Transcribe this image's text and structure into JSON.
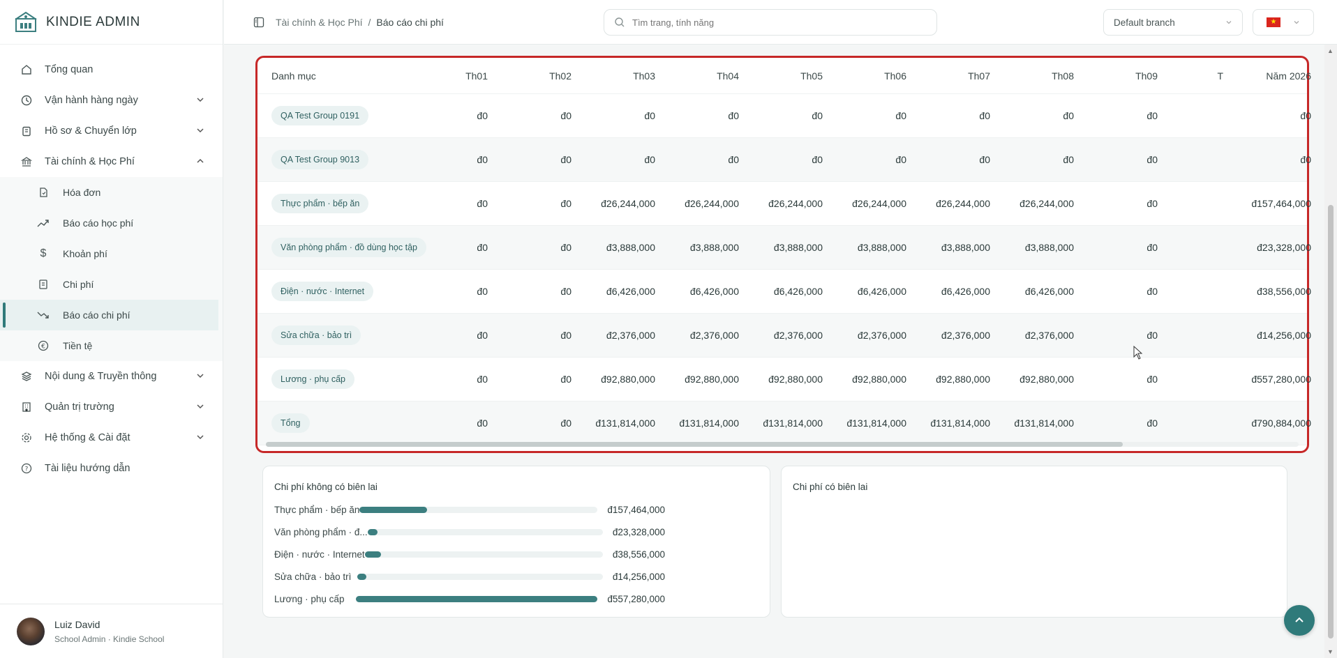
{
  "app": {
    "name": "KINDIE ADMIN"
  },
  "sidebar": {
    "items": [
      {
        "label": "Tổng quan",
        "icon": "home-icon"
      },
      {
        "label": "Vận hành hàng ngày",
        "icon": "clock-icon"
      },
      {
        "label": "Hồ sơ & Chuyển lớp",
        "icon": "clipboard-icon"
      },
      {
        "label": "Tài chính & Học Phí",
        "icon": "bank-icon"
      }
    ],
    "finance_sub": [
      {
        "label": "Hóa đơn",
        "icon": "invoice-icon"
      },
      {
        "label": "Báo cáo học phí",
        "icon": "trend-up-icon"
      },
      {
        "label": "Khoản phí",
        "icon": "dollar-icon"
      },
      {
        "label": "Chi phí",
        "icon": "receipt-icon"
      },
      {
        "label": "Báo cáo chi phí",
        "icon": "trend-down-icon"
      },
      {
        "label": "Tiền tệ",
        "icon": "euro-icon"
      }
    ],
    "items_after": [
      {
        "label": "Nội dung & Truyền thông",
        "icon": "layers-icon"
      },
      {
        "label": "Quản trị trường",
        "icon": "building-icon"
      },
      {
        "label": "Hệ thống & Cài đặt",
        "icon": "gear-icon"
      },
      {
        "label": "Tài liệu hướng dẫn",
        "icon": "help-icon"
      }
    ]
  },
  "user": {
    "name": "Luiz David",
    "role": "School Admin · Kindie School"
  },
  "header": {
    "breadcrumb": [
      "Tài chính & Học Phí",
      "/",
      "Báo cáo chi phí"
    ],
    "search_placeholder": "Tìm trang, tính năng",
    "branch": "Default branch",
    "language_flag": "vietnam-flag-icon"
  },
  "table": {
    "columns": [
      "Danh mục",
      "Th01",
      "Th02",
      "Th03",
      "Th04",
      "Th05",
      "Th06",
      "Th07",
      "Th08",
      "Th09",
      "T",
      "Năm 2026"
    ],
    "rows": [
      {
        "category": "QA Test Group 0191",
        "values": [
          "đ0",
          "đ0",
          "đ0",
          "đ0",
          "đ0",
          "đ0",
          "đ0",
          "đ0",
          "đ0"
        ],
        "year": "đ0"
      },
      {
        "category": "QA Test Group 9013",
        "values": [
          "đ0",
          "đ0",
          "đ0",
          "đ0",
          "đ0",
          "đ0",
          "đ0",
          "đ0",
          "đ0"
        ],
        "year": "đ0"
      },
      {
        "category": "Thực phẩm · bếp ăn",
        "values": [
          "đ0",
          "đ0",
          "đ26,244,000",
          "đ26,244,000",
          "đ26,244,000",
          "đ26,244,000",
          "đ26,244,000",
          "đ26,244,000",
          "đ0"
        ],
        "year": "đ157,464,000"
      },
      {
        "category": "Văn phòng phẩm · đồ dùng học tập",
        "values": [
          "đ0",
          "đ0",
          "đ3,888,000",
          "đ3,888,000",
          "đ3,888,000",
          "đ3,888,000",
          "đ3,888,000",
          "đ3,888,000",
          "đ0"
        ],
        "year": "đ23,328,000"
      },
      {
        "category": "Điện · nước · Internet",
        "values": [
          "đ0",
          "đ0",
          "đ6,426,000",
          "đ6,426,000",
          "đ6,426,000",
          "đ6,426,000",
          "đ6,426,000",
          "đ6,426,000",
          "đ0"
        ],
        "year": "đ38,556,000"
      },
      {
        "category": "Sửa chữa · bảo trì",
        "values": [
          "đ0",
          "đ0",
          "đ2,376,000",
          "đ2,376,000",
          "đ2,376,000",
          "đ2,376,000",
          "đ2,376,000",
          "đ2,376,000",
          "đ0"
        ],
        "year": "đ14,256,000"
      },
      {
        "category": "Lương · phụ cấp",
        "values": [
          "đ0",
          "đ0",
          "đ92,880,000",
          "đ92,880,000",
          "đ92,880,000",
          "đ92,880,000",
          "đ92,880,000",
          "đ92,880,000",
          "đ0"
        ],
        "year": "đ557,280,000"
      },
      {
        "category": "Tổng",
        "values": [
          "đ0",
          "đ0",
          "đ131,814,000",
          "đ131,814,000",
          "đ131,814,000",
          "đ131,814,000",
          "đ131,814,000",
          "đ131,814,000",
          "đ0"
        ],
        "year": "đ790,884,000"
      }
    ]
  },
  "no_receipt": {
    "title": "Chi phí không có biên lai",
    "items": [
      {
        "label": "Thực phẩm · bếp ăn",
        "value": "đ157,464,000",
        "fraction": 0.283
      },
      {
        "label": "Văn phòng phẩm · đ...",
        "value": "đ23,328,000",
        "fraction": 0.042
      },
      {
        "label": "Điện · nước · Internet",
        "value": "đ38,556,000",
        "fraction": 0.069
      },
      {
        "label": "Sửa chữa · bảo trì",
        "value": "đ14,256,000",
        "fraction": 0.026
      },
      {
        "label": "Lương · phụ cấp",
        "value": "đ557,280,000",
        "fraction": 1.0
      }
    ]
  },
  "with_receipt": {
    "title": "Chi phí có biên lai"
  },
  "colors": {
    "accent": "#2f7a7a",
    "bar": "#3c7f80",
    "highlight_border": "#c62828"
  }
}
